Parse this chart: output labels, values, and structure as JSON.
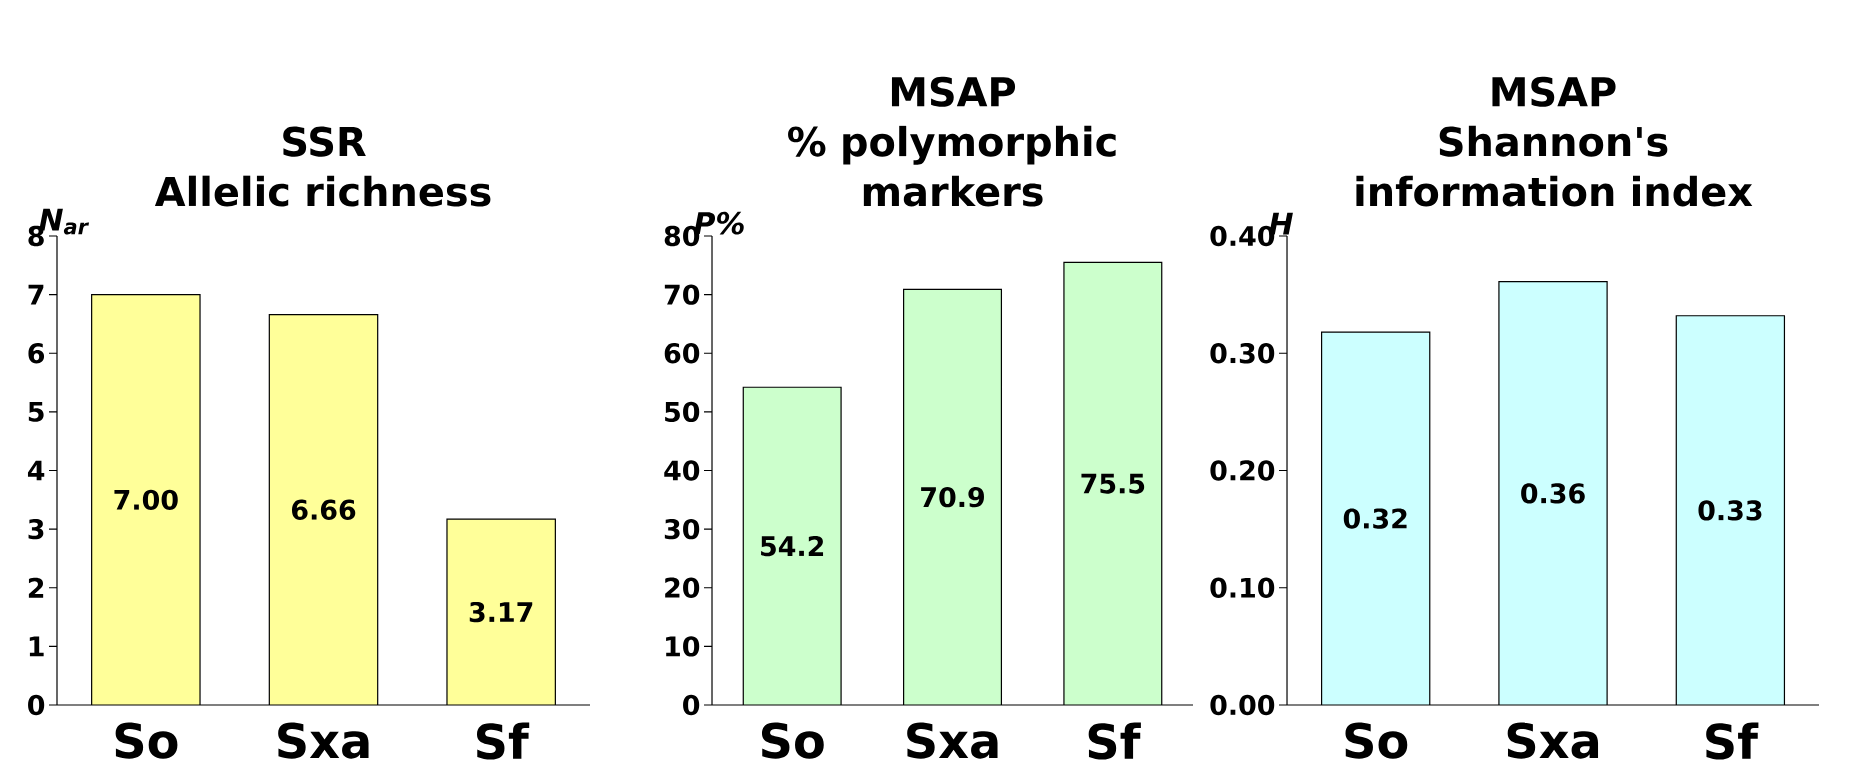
{
  "chart_data": [
    {
      "type": "bar",
      "title": "SSR",
      "subtitle": "Allelic richness",
      "ylabel": "N$_{ar}$",
      "categories": [
        "So",
        "Sxa",
        "Sf"
      ],
      "values": [
        7.0,
        6.66,
        3.17
      ],
      "value_labels": [
        "7.00",
        "6.66",
        "3.17"
      ],
      "color": "#ffff99",
      "ylim": [
        0,
        8
      ],
      "yticks": [
        0,
        1,
        2,
        3,
        4,
        5,
        6,
        7,
        8
      ]
    },
    {
      "type": "bar",
      "title": "MSAP",
      "subtitle": "% polymorphic markers",
      "ylabel": "P%",
      "categories": [
        "So",
        "Sxa",
        "Sf"
      ],
      "values": [
        54.2,
        70.9,
        75.5
      ],
      "value_labels": [
        "54.2",
        "70.9",
        "75.5"
      ],
      "color": "#ccffcc",
      "ylim": [
        0,
        80
      ],
      "yticks": [
        0,
        10,
        20,
        30,
        40,
        50,
        60,
        70,
        80
      ]
    },
    {
      "type": "bar",
      "title": "MSAP",
      "subtitle": "Shannon's information index",
      "ylabel": "H",
      "categories": [
        "So",
        "Sxa",
        "Sf"
      ],
      "values": [
        0.318,
        0.361,
        0.332
      ],
      "value_labels": [
        "0.32",
        "0.36",
        "0.33"
      ],
      "color": "#ccffff",
      "ylim": [
        0,
        0.4
      ],
      "yticks": [
        {
          "value": 0,
          "label": "0.00"
        },
        {
          "value": 0.1,
          "label": "0.10"
        },
        {
          "value": 0.2,
          "label": "0.20"
        },
        {
          "value": 0.3,
          "label": "0.30"
        },
        {
          "value": 0.4,
          "label": "0.40"
        }
      ]
    }
  ]
}
